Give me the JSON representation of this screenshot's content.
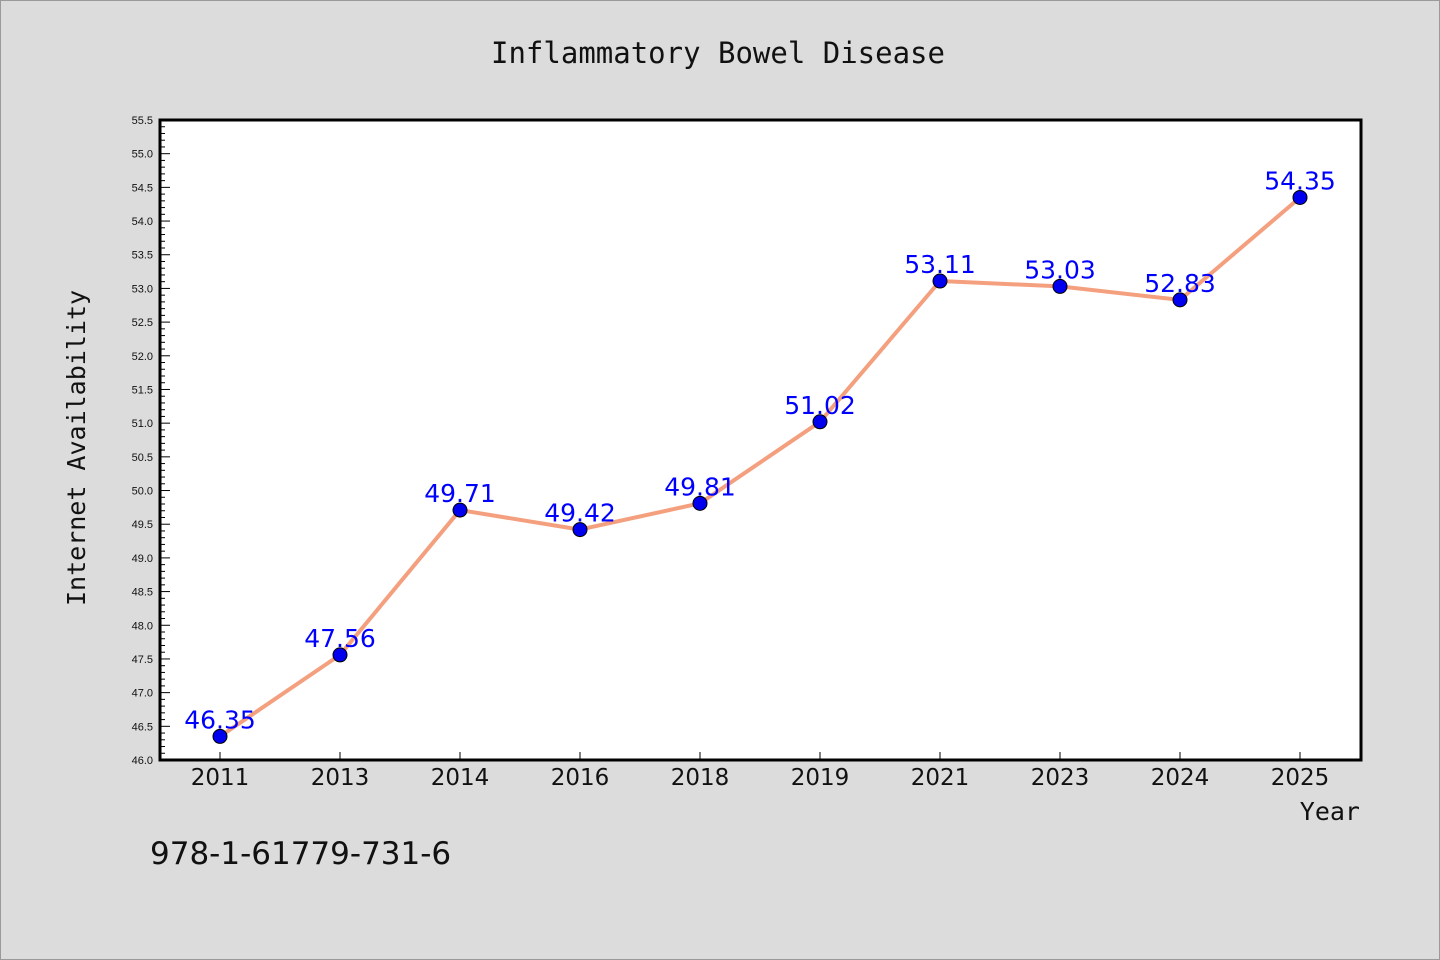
{
  "chart_data": {
    "type": "line",
    "title": "Inflammatory Bowel Disease",
    "xlabel": "Year",
    "ylabel": "Internet Availability",
    "categories": [
      "2011",
      "2013",
      "2014",
      "2016",
      "2018",
      "2019",
      "2021",
      "2023",
      "2024",
      "2025"
    ],
    "series": [
      {
        "values": [
          46.35,
          47.56,
          49.71,
          49.42,
          49.81,
          51.02,
          53.11,
          53.03,
          52.83,
          54.35
        ],
        "data_labels": [
          "46.35",
          "47.56",
          "49.71",
          "49.42",
          "49.81",
          "51.02",
          "53.11",
          "53.03",
          "52.83",
          "54.35"
        ]
      }
    ],
    "ylim": [
      46.0,
      55.5
    ],
    "yticks": [
      "46.0",
      "46.5",
      "47.0",
      "47.5",
      "48.0",
      "48.5",
      "49.0",
      "49.5",
      "50.0",
      "50.5",
      "51.0",
      "51.5",
      "52.0",
      "52.5",
      "53.0",
      "53.5",
      "54.0",
      "54.5",
      "55.0",
      "55.5"
    ],
    "grid": false,
    "legend": "none",
    "colors": {
      "line": "#f4a07f",
      "marker": "#0000ee",
      "data_label": "#0000ff",
      "plot_background": "#ffffff",
      "page_background": "#dcdcdc"
    }
  },
  "footer": {
    "isbn": "978-1-61779-731-6"
  }
}
